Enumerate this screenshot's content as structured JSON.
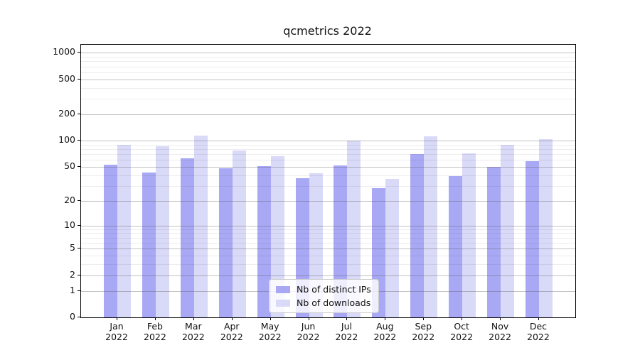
{
  "title": "qcmetrics 2022",
  "chart_data": {
    "type": "bar",
    "title": "qcmetrics 2022",
    "yscale": "log1p",
    "grid": true,
    "legend_position": "lower-center",
    "categories": [
      "Jan",
      "Feb",
      "Mar",
      "Apr",
      "May",
      "Jun",
      "Jul",
      "Aug",
      "Sep",
      "Oct",
      "Nov",
      "Dec"
    ],
    "category_year": "2022",
    "series": [
      {
        "name": "Nb of distinct IPs",
        "color": "#a8a8f4",
        "values": [
          53,
          43,
          63,
          48,
          51,
          37,
          52,
          28,
          70,
          39,
          50,
          58
        ]
      },
      {
        "name": "Nb of downloads",
        "color": "#d9d9f8",
        "values": [
          89,
          86,
          115,
          77,
          66,
          42,
          101,
          36,
          112,
          72,
          90,
          104
        ]
      }
    ],
    "yticks": [
      0,
      1,
      2,
      5,
      10,
      20,
      50,
      100,
      200,
      500,
      1000
    ],
    "ylim": [
      0,
      1235
    ],
    "colors": {
      "major_grid": "rgba(80,80,80,0.35)",
      "minor_grid": "rgba(80,80,80,0.10)",
      "axis": "#000000",
      "text": "#111111"
    }
  }
}
